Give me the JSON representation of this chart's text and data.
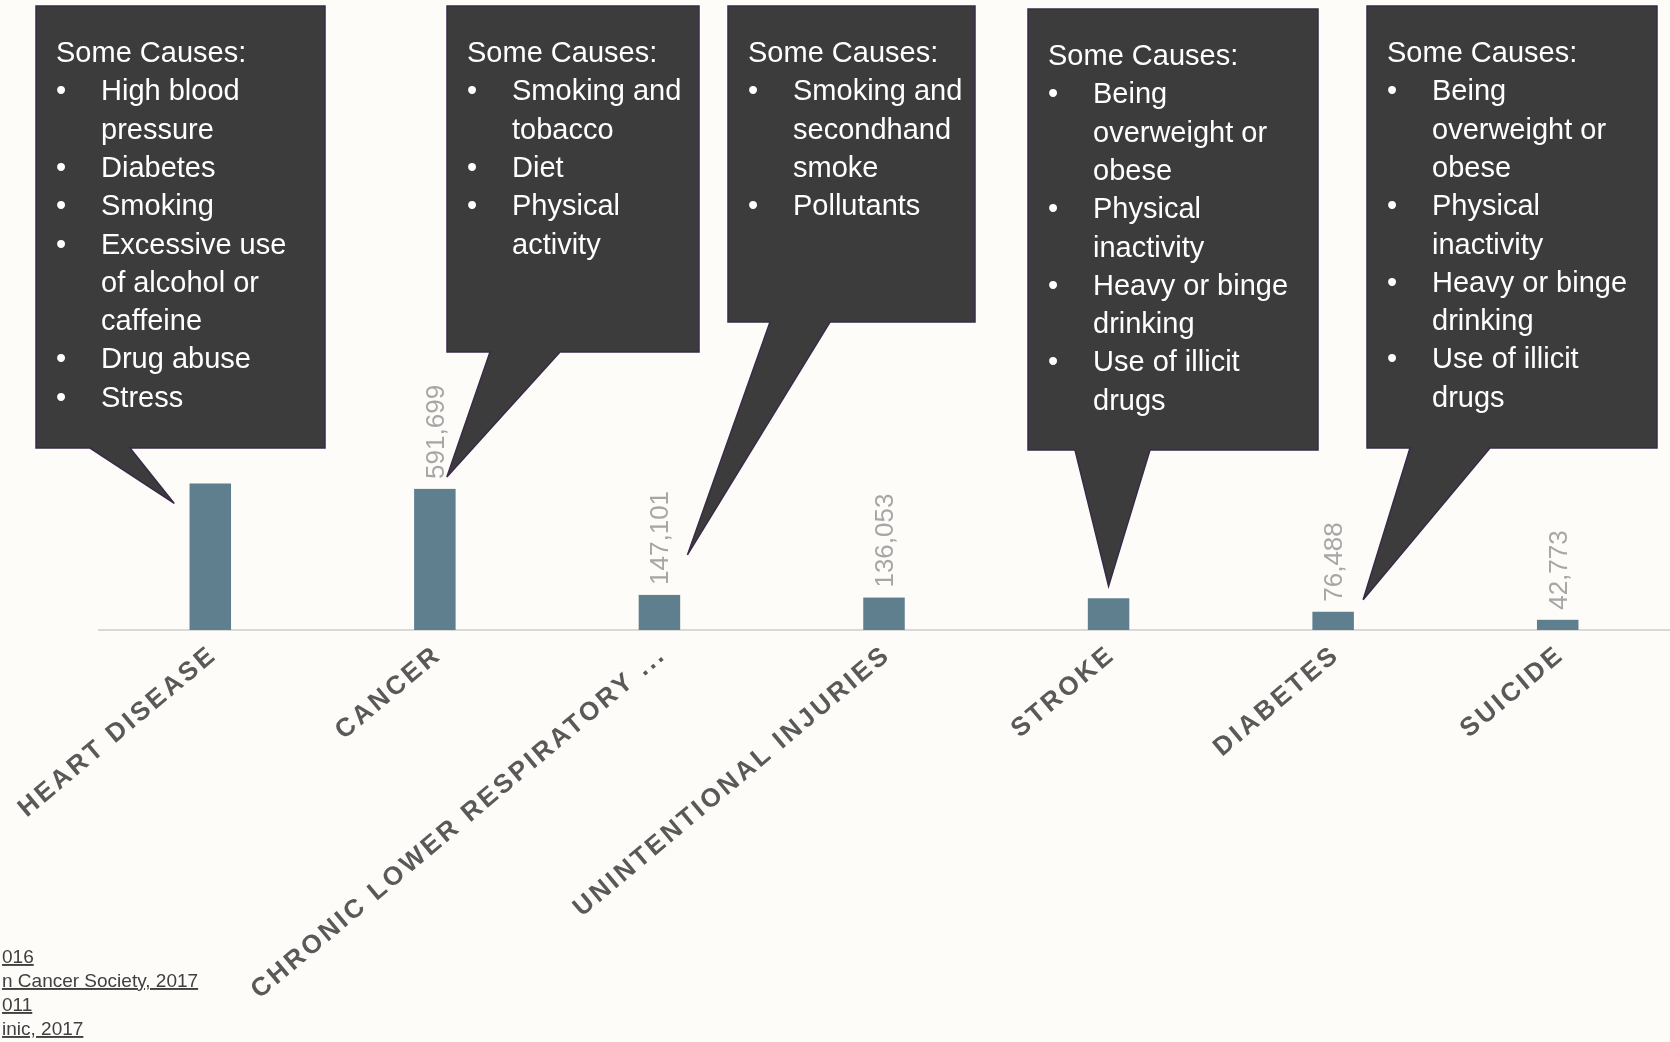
{
  "chart_data": {
    "type": "bar",
    "categories": [
      "HEART DISEASE",
      "CANCER",
      "CHRONIC LOWER RESPIRATORY ...",
      "UNINTENTIONAL INJURIES",
      "STROKE",
      "DIABETES",
      "SUICIDE"
    ],
    "values": [
      614348,
      591699,
      147101,
      136053,
      133103,
      76488,
      42773
    ],
    "value_labels": [
      null,
      "591,699",
      "147,101",
      "136,053",
      null,
      "76,488",
      "42,773"
    ],
    "color": "#607f8e",
    "annotations": [
      "Some Causes:\n• High blood pressure\n• Diabetes\n• Smoking\n• Excessive use of alcohol or caffeine\n• Drug abuse\n• Stress",
      "Some Causes:\n• Smoking and tobacco\n• Diet\n• Physical activity",
      "Some Causes:\n• Smoking and secondhand smoke\n• Pollutants",
      "Some Causes:\n• Being overweight or obese\n• Physical inactivity\n• Heavy or binge drinking\n• Use of illicit drugs",
      "Some Causes:\n• Being overweight or obese\n• Physical inactivity\n• Heavy or binge drinking\n• Use of illicit drugs",
      "016",
      "n Cancer Society, 2017",
      "011",
      "inic, 2017"
    ]
  }
}
